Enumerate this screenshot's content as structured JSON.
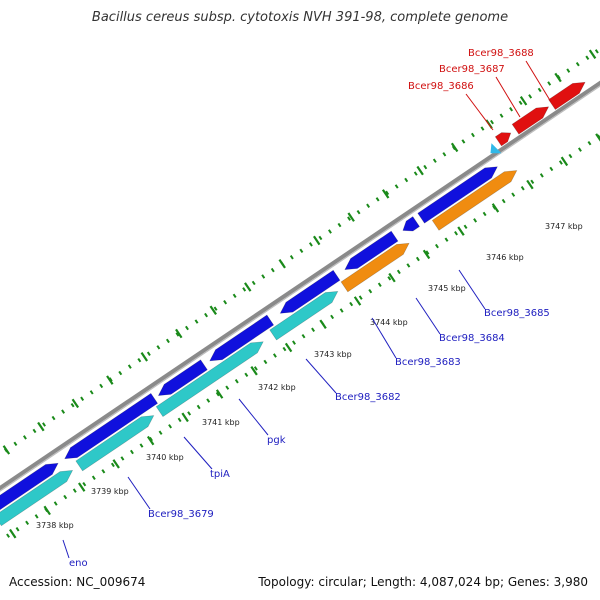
{
  "title": "Bacillus cereus subsp. cytotoxis NVH 391-98, complete genome",
  "footer": {
    "accession": "Accession: NC_009674",
    "info": "Topology: circular; Length: 4,087,024 bp; Genes: 3,980"
  },
  "colors": {
    "cds_blue": "#1010dd",
    "cds_cyan": "#2ec8c8",
    "cds_orange": "#f08c10",
    "cds_red": "#e01010",
    "backbone": "#8a8a8a",
    "tick": "#1a8a1a",
    "label_blue": "#2020c0",
    "label_red": "#d01010",
    "marker": "#30b8e8"
  },
  "scale_labels": [
    "3738 kbp",
    "3739 kbp",
    "3740 kbp",
    "3741 kbp",
    "3742 kbp",
    "3743 kbp",
    "3744 kbp",
    "3745 kbp",
    "3746 kbp",
    "3747 kbp"
  ],
  "gene_labels": [
    {
      "text": "eno",
      "color": "label_blue"
    },
    {
      "text": "Bcer98_3679",
      "color": "label_blue"
    },
    {
      "text": "tpiA",
      "color": "label_blue"
    },
    {
      "text": "pgk",
      "color": "label_blue"
    },
    {
      "text": "Bcer98_3682",
      "color": "label_blue"
    },
    {
      "text": "Bcer98_3683",
      "color": "label_blue"
    },
    {
      "text": "Bcer98_3684",
      "color": "label_blue"
    },
    {
      "text": "Bcer98_3685",
      "color": "label_blue"
    },
    {
      "text": "Bcer98_3686",
      "color": "label_red"
    },
    {
      "text": "Bcer98_3687",
      "color": "label_red"
    },
    {
      "text": "Bcer98_3688",
      "color": "label_red"
    }
  ]
}
